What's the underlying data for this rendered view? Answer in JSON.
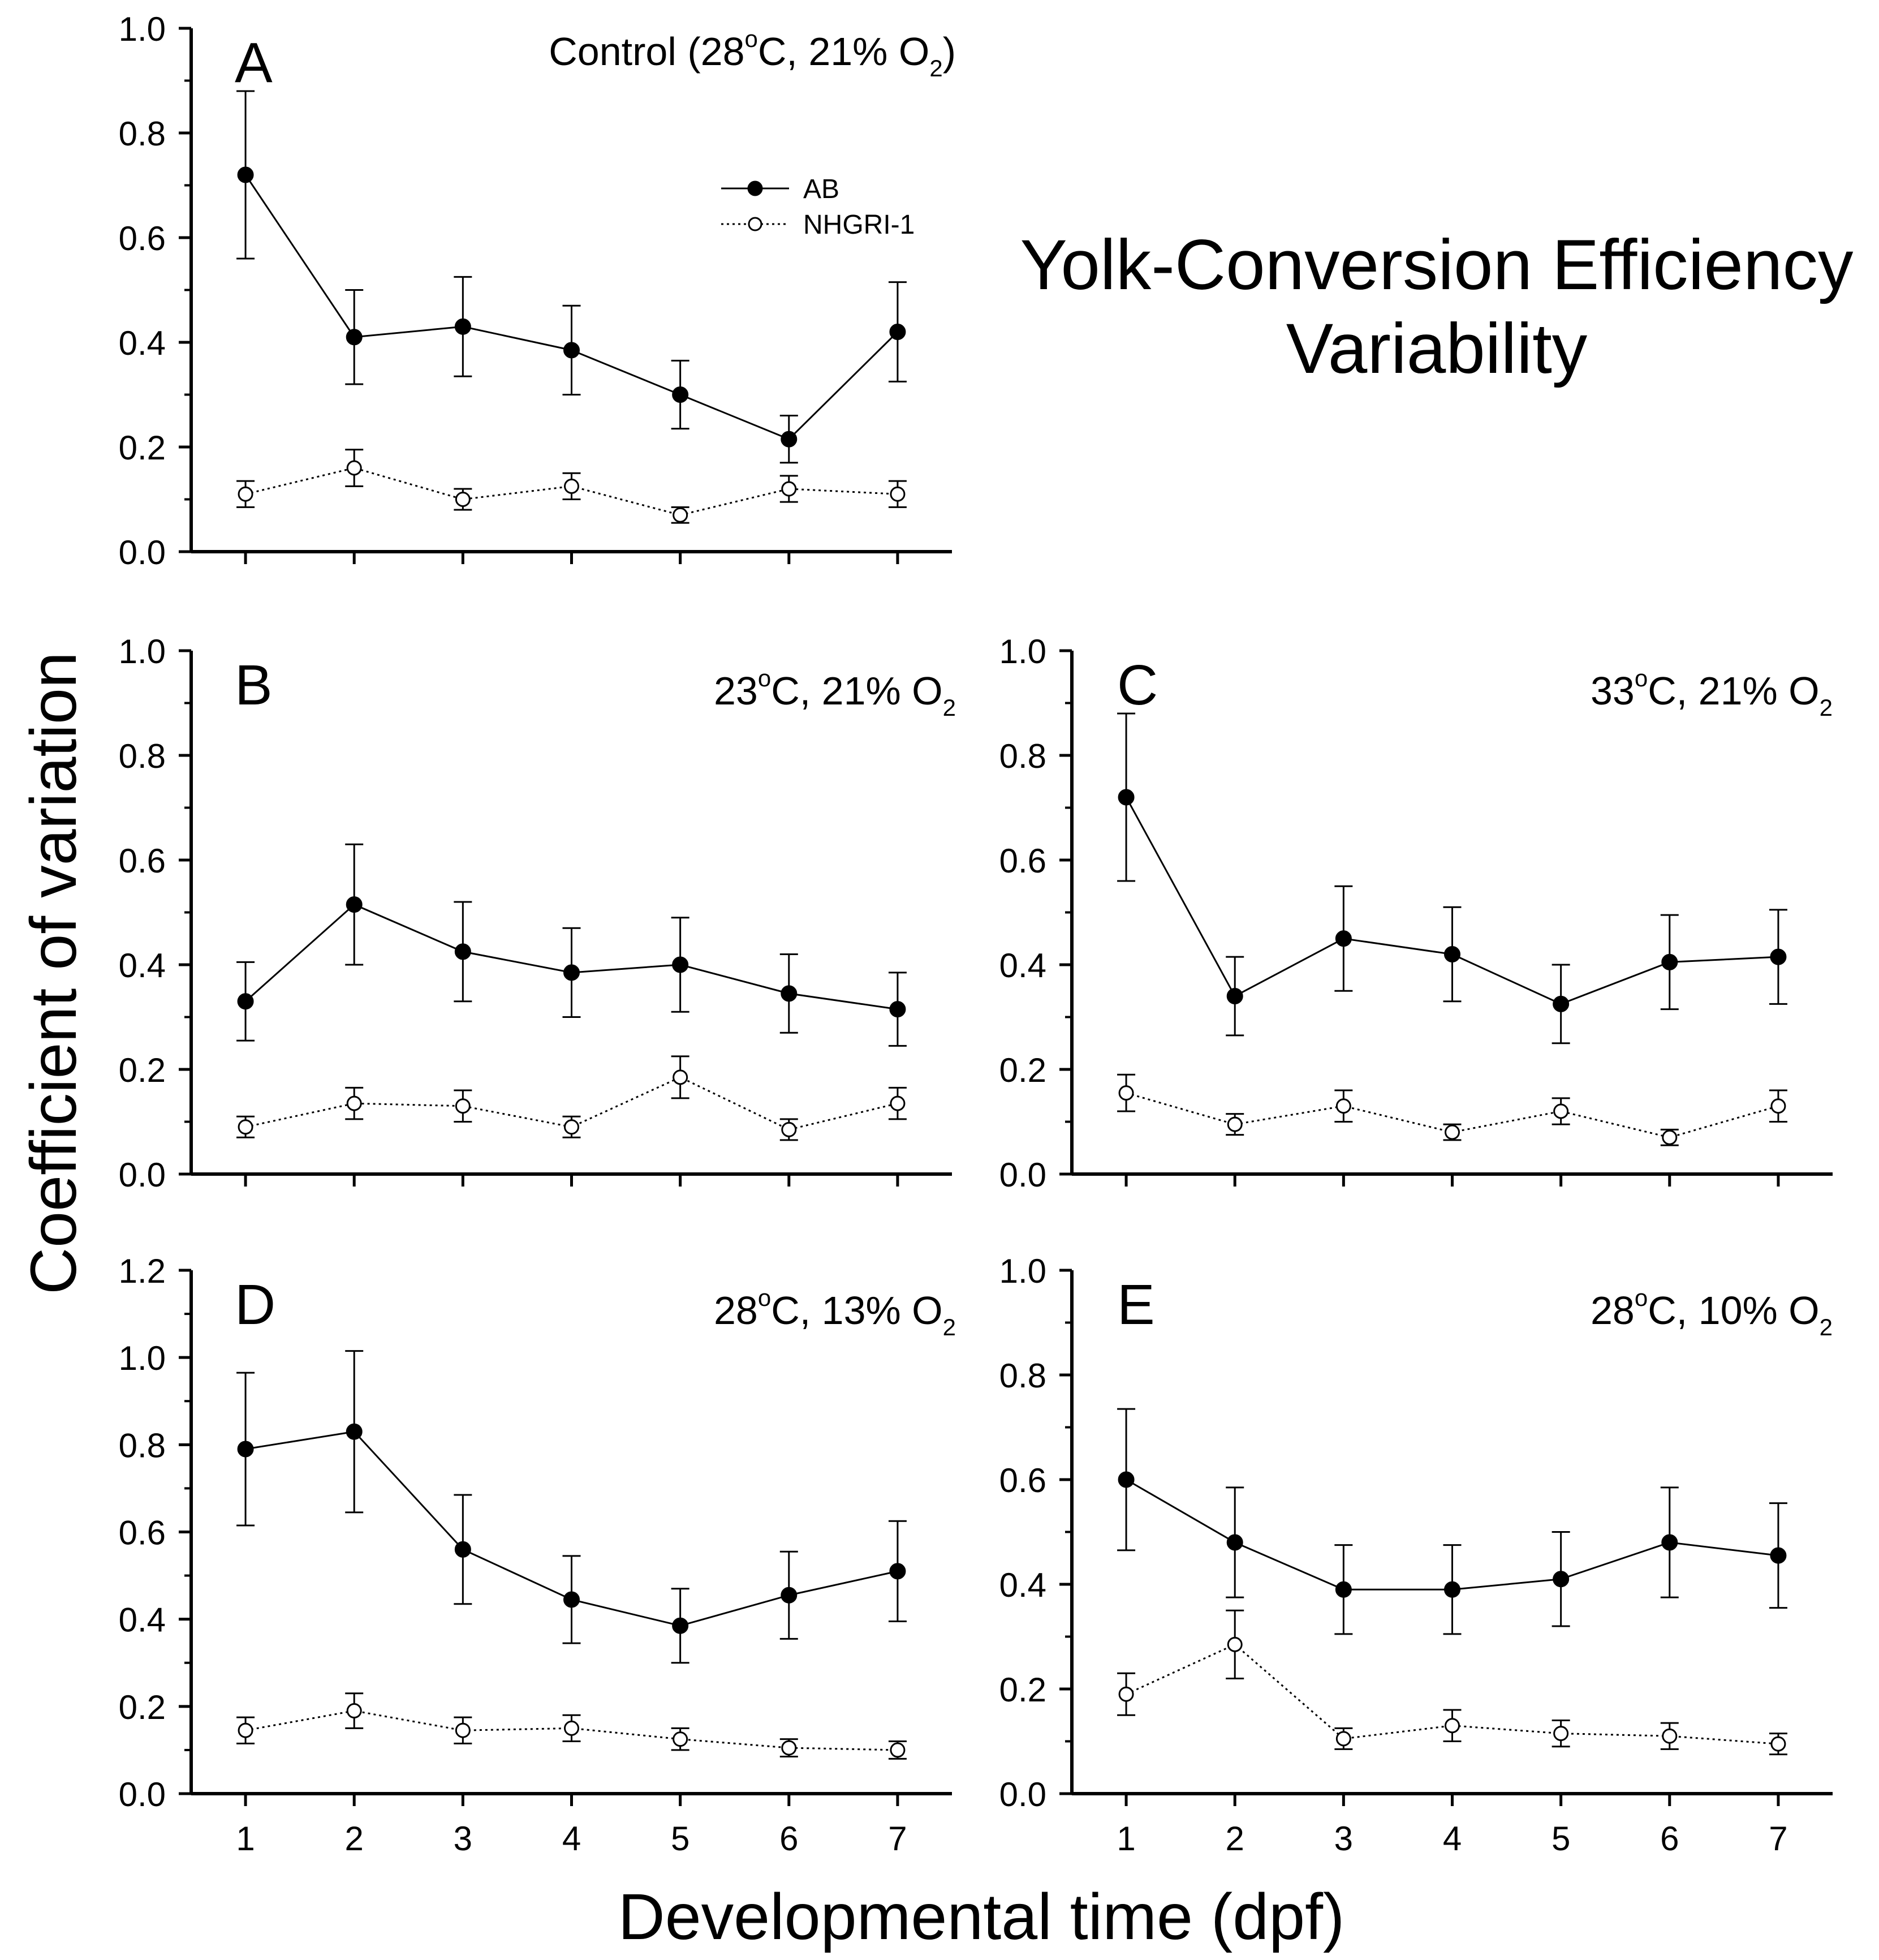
{
  "figure": {
    "title_line1": "Yolk-Conversion Efficiency",
    "title_line2": "Variability",
    "y_axis_label": "Coefficient of variation",
    "x_axis_label": "Developmental time (dpf)",
    "legend": [
      {
        "name": "AB",
        "marker": "filled-circle",
        "line": "solid"
      },
      {
        "name": "NHGRI-1",
        "marker": "open-circle",
        "line": "dotted"
      }
    ]
  },
  "chart_data": [
    {
      "type": "line",
      "panel": "A",
      "condition_prefix": "Control (28",
      "condition_mid": "C, 21% O",
      "condition_suffix": ")",
      "x": [
        1,
        2,
        3,
        4,
        5,
        6,
        7
      ],
      "xlim": [
        0.5,
        7.5
      ],
      "ylim": [
        0,
        1.0
      ],
      "yticks": [
        "0.0",
        "0.2",
        "0.4",
        "0.6",
        "0.8",
        "1.0"
      ],
      "show_x_tick_labels": false,
      "series": [
        {
          "name": "AB",
          "values": [
            0.72,
            0.41,
            0.43,
            0.385,
            0.3,
            0.215,
            0.42
          ],
          "errors": [
            0.16,
            0.09,
            0.095,
            0.085,
            0.065,
            0.045,
            0.095
          ]
        },
        {
          "name": "NHGRI-1",
          "values": [
            0.11,
            0.16,
            0.1,
            0.125,
            0.07,
            0.12,
            0.11
          ],
          "errors": [
            0.025,
            0.035,
            0.02,
            0.025,
            0.015,
            0.025,
            0.025
          ]
        }
      ]
    },
    {
      "type": "line",
      "panel": "B",
      "condition_prefix": "23",
      "condition_mid": "C, 21% O",
      "condition_suffix": "",
      "x": [
        1,
        2,
        3,
        4,
        5,
        6,
        7
      ],
      "xlim": [
        0.5,
        7.5
      ],
      "ylim": [
        0,
        1.0
      ],
      "yticks": [
        "0.0",
        "0.2",
        "0.4",
        "0.6",
        "0.8",
        "1.0"
      ],
      "show_x_tick_labels": false,
      "series": [
        {
          "name": "AB",
          "values": [
            0.33,
            0.515,
            0.425,
            0.385,
            0.4,
            0.345,
            0.315
          ],
          "errors": [
            0.075,
            0.115,
            0.095,
            0.085,
            0.09,
            0.075,
            0.07
          ]
        },
        {
          "name": "NHGRI-1",
          "values": [
            0.09,
            0.135,
            0.13,
            0.09,
            0.185,
            0.085,
            0.135
          ],
          "errors": [
            0.02,
            0.03,
            0.03,
            0.02,
            0.04,
            0.02,
            0.03
          ]
        }
      ]
    },
    {
      "type": "line",
      "panel": "C",
      "condition_prefix": "33",
      "condition_mid": "C, 21% O",
      "condition_suffix": "",
      "x": [
        1,
        2,
        3,
        4,
        5,
        6,
        7
      ],
      "xlim": [
        0.5,
        7.5
      ],
      "ylim": [
        0,
        1.0
      ],
      "yticks": [
        "0.0",
        "0.2",
        "0.4",
        "0.6",
        "0.8",
        "1.0"
      ],
      "show_x_tick_labels": false,
      "series": [
        {
          "name": "AB",
          "values": [
            0.72,
            0.34,
            0.45,
            0.42,
            0.325,
            0.405,
            0.415
          ],
          "errors": [
            0.16,
            0.075,
            0.1,
            0.09,
            0.075,
            0.09,
            0.09
          ]
        },
        {
          "name": "NHGRI-1",
          "values": [
            0.155,
            0.095,
            0.13,
            0.08,
            0.12,
            0.07,
            0.13
          ],
          "errors": [
            0.035,
            0.02,
            0.03,
            0.015,
            0.025,
            0.015,
            0.03
          ]
        }
      ]
    },
    {
      "type": "line",
      "panel": "D",
      "condition_prefix": "28",
      "condition_mid": "C, 13% O",
      "condition_suffix": "",
      "x": [
        1,
        2,
        3,
        4,
        5,
        6,
        7
      ],
      "xlim": [
        0.5,
        7.5
      ],
      "ylim": [
        0,
        1.2
      ],
      "yticks": [
        "0.0",
        "0.2",
        "0.4",
        "0.6",
        "0.8",
        "1.0",
        "1.2"
      ],
      "show_x_tick_labels": true,
      "xticks": [
        "1",
        "2",
        "3",
        "4",
        "5",
        "6",
        "7"
      ],
      "series": [
        {
          "name": "AB",
          "values": [
            0.79,
            0.83,
            0.56,
            0.445,
            0.385,
            0.455,
            0.51
          ],
          "errors": [
            0.175,
            0.185,
            0.125,
            0.1,
            0.085,
            0.1,
            0.115
          ]
        },
        {
          "name": "NHGRI-1",
          "values": [
            0.145,
            0.19,
            0.145,
            0.15,
            0.125,
            0.105,
            0.1
          ],
          "errors": [
            0.03,
            0.04,
            0.03,
            0.03,
            0.025,
            0.02,
            0.02
          ]
        }
      ]
    },
    {
      "type": "line",
      "panel": "E",
      "condition_prefix": "28",
      "condition_mid": "C, 10% O",
      "condition_suffix": "",
      "x": [
        1,
        2,
        3,
        4,
        5,
        6,
        7
      ],
      "xlim": [
        0.5,
        7.5
      ],
      "ylim": [
        0,
        1.0
      ],
      "yticks": [
        "0.0",
        "0.2",
        "0.4",
        "0.6",
        "0.8",
        "1.0"
      ],
      "show_x_tick_labels": true,
      "xticks": [
        "1",
        "2",
        "3",
        "4",
        "5",
        "6",
        "7"
      ],
      "series": [
        {
          "name": "AB",
          "values": [
            0.6,
            0.48,
            0.39,
            0.39,
            0.41,
            0.48,
            0.455
          ],
          "errors": [
            0.135,
            0.105,
            0.085,
            0.085,
            0.09,
            0.105,
            0.1
          ]
        },
        {
          "name": "NHGRI-1",
          "values": [
            0.19,
            0.285,
            0.105,
            0.13,
            0.115,
            0.11,
            0.095
          ],
          "errors": [
            0.04,
            0.065,
            0.02,
            0.03,
            0.025,
            0.025,
            0.02
          ]
        }
      ]
    }
  ]
}
